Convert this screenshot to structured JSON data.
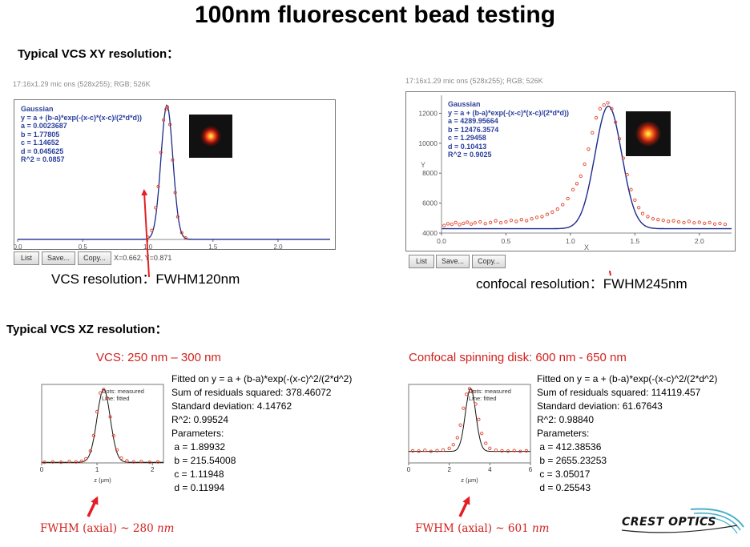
{
  "title": "100nm fluorescent bead testing",
  "section_xy": "Typical VCS XY resolution：",
  "section_xz": "Typical VCS XZ resolution：",
  "xy_left": {
    "window_title": "17:16x1.29 mic ons (528x255); RGB; 526K",
    "fit": {
      "name": "Gaussian",
      "eq": "y = a + (b-a)*exp(-(x-c)*(x-c)/(2*d*d))",
      "a": "a = 0.0023687",
      "b": "b = 1.77805",
      "c": "c = 1.14652",
      "d": "d = 0.045625",
      "r2": "R^2 = 0.0857"
    },
    "buttons": [
      "List",
      "Save...",
      "Copy..."
    ],
    "readout": "X=0.662, Y=0.871",
    "caption_label": "VCS resolution：",
    "caption_value": "FWHM120nm"
  },
  "xy_right": {
    "window_title": "17:16x1.29 mic ons (528x255); RGB; 526K",
    "fit": {
      "name": "Gaussian",
      "eq": "y = a + (b-a)*exp(-(x-c)*(x-c)/(2*d*d))",
      "a": "a = 4289.95664",
      "b": "b = 12476.3574",
      "c": "c = 1.29458",
      "d": "d = 0.10413",
      "r2": "R^2 = 0.9025"
    },
    "buttons": [
      "List",
      "Save...",
      "Copy..."
    ],
    "ylabel": "Y",
    "xlabel": "X",
    "caption_label": "confocal resolution：",
    "caption_value": "FWHM245nm"
  },
  "xz_left": {
    "range_label": "VCS: 250 nm – 300 nm",
    "legend": [
      "Dots: measured",
      "Line: fitted"
    ],
    "xlabel": "z (µm)",
    "fit_lines": [
      "Fitted on y = a + (b-a)*exp(-(x-c)^2/(2*d^2)",
      "Sum of residuals squared: 378.46072",
      "Standard deviation: 4.14762",
      "R^2: 0.99524",
      "Parameters:",
      " a = 1.89932",
      " b = 215.54008",
      " c = 1.11948",
      " d = 0.11994"
    ],
    "fwhm_label": "FWHM (axial) ~ 280 ",
    "fwhm_unit": "nm"
  },
  "xz_right": {
    "range_label": "Confocal spinning disk: 600 nm - 650 nm",
    "legend": [
      "Dots: measured",
      "Line: fitted"
    ],
    "xlabel": "z (µm)",
    "fit_lines": [
      "Fitted on y = a + (b-a)*exp(-(x-c)^2/(2*d^2)",
      "Sum of residuals squared: 114119.457",
      "Standard deviation: 61.67643",
      "R^2: 0.98840",
      "Parameters:",
      " a = 412.38536",
      " b = 2655.23253",
      " c = 3.05017",
      " d = 0.25543"
    ],
    "fwhm_label": "FWHM (axial) ~ 601 ",
    "fwhm_unit": "nm"
  },
  "logo_text": "CREST OPTICS",
  "colors": {
    "fit_line": "#1b2a8c",
    "measured_dot": "#e0442a",
    "arrow": "#e31e24",
    "caption_red": "#d0211e",
    "annotation_blue": "#2a3f9c"
  },
  "chart_data": [
    {
      "type": "line",
      "xlim": [
        0.0,
        2.4
      ],
      "ylim": [
        0,
        1.8
      ],
      "xticks": [
        "0.0",
        "0.5",
        "1.0",
        "1.5",
        "2.0"
      ],
      "xtick_values": [
        0.0,
        0.5,
        1.0,
        1.5,
        2.0
      ],
      "fit": {
        "a": 0.0023687,
        "b": 1.77805,
        "c": 1.14652,
        "d": 0.045625
      },
      "series": [
        {
          "name": "measured",
          "x": [
            1.0,
            1.03,
            1.06,
            1.08,
            1.1,
            1.12,
            1.14,
            1.15,
            1.17,
            1.19,
            1.21,
            1.23,
            1.26,
            1.29
          ],
          "y": [
            0.03,
            0.12,
            0.42,
            0.7,
            1.15,
            1.58,
            1.72,
            1.75,
            1.52,
            1.05,
            0.62,
            0.3,
            0.09,
            0.02
          ]
        }
      ]
    },
    {
      "type": "line",
      "xlim": [
        0.0,
        2.25
      ],
      "ylim": [
        4000,
        13200
      ],
      "yticks": [
        4000,
        6000,
        8000,
        10000,
        12000
      ],
      "xticks": [
        "0.0",
        "0.5",
        "1.0",
        "1.5",
        "2.0"
      ],
      "xtick_values": [
        0.0,
        0.5,
        1.0,
        1.5,
        2.0
      ],
      "fit": {
        "a": 4289.95664,
        "b": 12476.3574,
        "c": 1.29458,
        "d": 0.10413
      },
      "series": [
        {
          "name": "measured",
          "x": [
            0.02,
            0.05,
            0.08,
            0.11,
            0.14,
            0.17,
            0.2,
            0.23,
            0.26,
            0.3,
            0.34,
            0.38,
            0.42,
            0.46,
            0.5,
            0.54,
            0.58,
            0.62,
            0.66,
            0.7,
            0.74,
            0.78,
            0.82,
            0.86,
            0.9,
            0.94,
            0.98,
            1.02,
            1.05,
            1.08,
            1.11,
            1.14,
            1.17,
            1.2,
            1.23,
            1.26,
            1.29,
            1.32,
            1.35,
            1.38,
            1.41,
            1.44,
            1.47,
            1.5,
            1.53,
            1.56,
            1.6,
            1.64,
            1.68,
            1.72,
            1.76,
            1.8,
            1.84,
            1.88,
            1.92,
            1.96,
            2.0,
            2.04,
            2.08,
            2.12,
            2.16,
            2.2
          ],
          "y": [
            4500,
            4620,
            4580,
            4700,
            4560,
            4650,
            4720,
            4600,
            4680,
            4750,
            4630,
            4700,
            4820,
            4690,
            4750,
            4850,
            4780,
            4900,
            4830,
            4950,
            5050,
            5100,
            5250,
            5400,
            5600,
            5900,
            6300,
            6900,
            7300,
            7800,
            8600,
            9600,
            10700,
            11700,
            12300,
            12550,
            12700,
            12300,
            11400,
            10300,
            9000,
            7900,
            6900,
            6200,
            5700,
            5300,
            5100,
            4950,
            4900,
            4850,
            4780,
            4820,
            4750,
            4700,
            4780,
            4680,
            4720,
            4650,
            4700,
            4600,
            4640,
            4580
          ]
        }
      ]
    },
    {
      "type": "line",
      "xlim": [
        0,
        2.2
      ],
      "ylim": [
        0,
        230
      ],
      "xticks": [
        "0",
        "1",
        "2"
      ],
      "xtick_values": [
        0,
        1,
        2
      ],
      "fit": {
        "a": 1.89932,
        "b": 215.54008,
        "c": 1.11948,
        "d": 0.11994
      },
      "series": [
        {
          "name": "Dots: measured",
          "x": [
            0.05,
            0.2,
            0.35,
            0.5,
            0.62,
            0.72,
            0.8,
            0.88,
            0.94,
            1.0,
            1.06,
            1.12,
            1.18,
            1.24,
            1.3,
            1.36,
            1.44,
            1.54,
            1.66,
            1.8,
            1.95,
            2.1
          ],
          "y": [
            2,
            3,
            2,
            4,
            3,
            5,
            12,
            35,
            80,
            150,
            205,
            215,
            190,
            135,
            80,
            38,
            14,
            6,
            3,
            4,
            2,
            3
          ]
        }
      ]
    },
    {
      "type": "line",
      "xlim": [
        0,
        6
      ],
      "ylim": [
        0,
        2800
      ],
      "xticks": [
        "0",
        "2",
        "4",
        "6"
      ],
      "xtick_values": [
        0,
        2,
        4,
        6
      ],
      "fit": {
        "a": 412.38536,
        "b": 2655.23253,
        "c": 3.05017,
        "d": 0.25543
      },
      "series": [
        {
          "name": "Dots: measured",
          "x": [
            0.2,
            0.5,
            0.8,
            1.1,
            1.4,
            1.7,
            2.0,
            2.2,
            2.4,
            2.55,
            2.7,
            2.85,
            3.0,
            3.15,
            3.3,
            3.45,
            3.6,
            3.8,
            4.0,
            4.3,
            4.6,
            4.9,
            5.2,
            5.5,
            5.8
          ],
          "y": [
            430,
            420,
            450,
            410,
            440,
            460,
            520,
            650,
            900,
            1350,
            1950,
            2450,
            2650,
            2550,
            2100,
            1550,
            1050,
            700,
            520,
            450,
            430,
            420,
            440,
            410,
            430
          ]
        }
      ]
    }
  ]
}
